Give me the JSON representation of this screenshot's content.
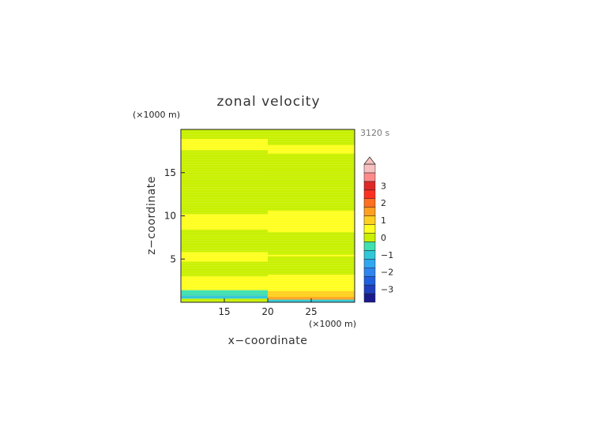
{
  "chart_data": {
    "type": "heatmap",
    "title": "zonal velocity",
    "xlabel": "x−coordinate",
    "ylabel": "z−coordinate",
    "x_unit": "(×1000 m)",
    "y_unit": "(×1000 m)",
    "time_label": "3120 s",
    "xlim": [
      10,
      30
    ],
    "ylim": [
      0,
      20
    ],
    "x_ticks": [
      15,
      20,
      25
    ],
    "y_ticks": [
      5,
      10,
      15
    ],
    "x_tick_labels": [
      "15",
      "20",
      "25"
    ],
    "y_tick_labels": [
      "5",
      "10",
      "15"
    ],
    "colorbar": {
      "levels": [
        -3.5,
        -3,
        -2.5,
        -2,
        -1.5,
        -1,
        -0.5,
        0,
        0.5,
        1,
        1.5,
        2,
        2.5,
        3,
        3.5
      ],
      "colors": [
        "#1a1a8c",
        "#1f3fbf",
        "#2060e0",
        "#2f86f0",
        "#30a8f0",
        "#30c8d8",
        "#40e0b0",
        "#c8f000",
        "#ffff20",
        "#ffd020",
        "#ffa020",
        "#ff7020",
        "#ff3020",
        "#e02828",
        "#ff8a8a",
        "#f8c0c0"
      ],
      "tick_values": [
        3,
        2,
        1,
        0,
        -1,
        -2,
        -3
      ],
      "tick_labels": [
        "3",
        "2",
        "1",
        "0",
        "−1",
        "−2",
        "−3"
      ],
      "extend_max": true
    },
    "regions": [
      {
        "x": [
          10,
          20
        ],
        "y": [
          0,
          20
        ],
        "value": 0.25
      },
      {
        "x": [
          20,
          30
        ],
        "y": [
          0,
          20
        ],
        "value": 0.25
      },
      {
        "x": [
          10,
          20
        ],
        "y": [
          18.9,
          20
        ],
        "value": -0.1
      },
      {
        "x": [
          20,
          30
        ],
        "y": [
          18.2,
          20
        ],
        "value": -0.1
      },
      {
        "x": [
          10,
          20
        ],
        "y": [
          15.1,
          17.6
        ],
        "value": -0.1
      },
      {
        "x": [
          20,
          30
        ],
        "y": [
          14.9,
          17.2
        ],
        "value": -0.1
      },
      {
        "x": [
          10,
          20
        ],
        "y": [
          10.2,
          15.1
        ],
        "value": -0.1
      },
      {
        "x": [
          20,
          30
        ],
        "y": [
          10.6,
          14.9
        ],
        "value": -0.1
      },
      {
        "x": [
          10,
          20
        ],
        "y": [
          5.8,
          8.4
        ],
        "value": -0.1
      },
      {
        "x": [
          20,
          30
        ],
        "y": [
          5.5,
          8.1
        ],
        "value": -0.1
      },
      {
        "x": [
          10,
          20
        ],
        "y": [
          3.0,
          4.7
        ],
        "value": -0.1
      },
      {
        "x": [
          20,
          30
        ],
        "y": [
          3.2,
          5.3
        ],
        "value": -0.1
      },
      {
        "x": [
          10,
          20
        ],
        "y": [
          0.8,
          1.4
        ],
        "value": -0.7
      },
      {
        "x": [
          10,
          20
        ],
        "y": [
          0.4,
          0.8
        ],
        "value": -1.2
      },
      {
        "x": [
          10,
          20
        ],
        "y": [
          0,
          0.4
        ],
        "value": -0.3
      },
      {
        "x": [
          20,
          30
        ],
        "y": [
          0.6,
          1.3
        ],
        "value": 0.7
      },
      {
        "x": [
          20,
          30
        ],
        "y": [
          0.3,
          0.6
        ],
        "value": 1.2
      },
      {
        "x": [
          20,
          30
        ],
        "y": [
          0,
          0.3
        ],
        "value": -1.2
      }
    ]
  }
}
